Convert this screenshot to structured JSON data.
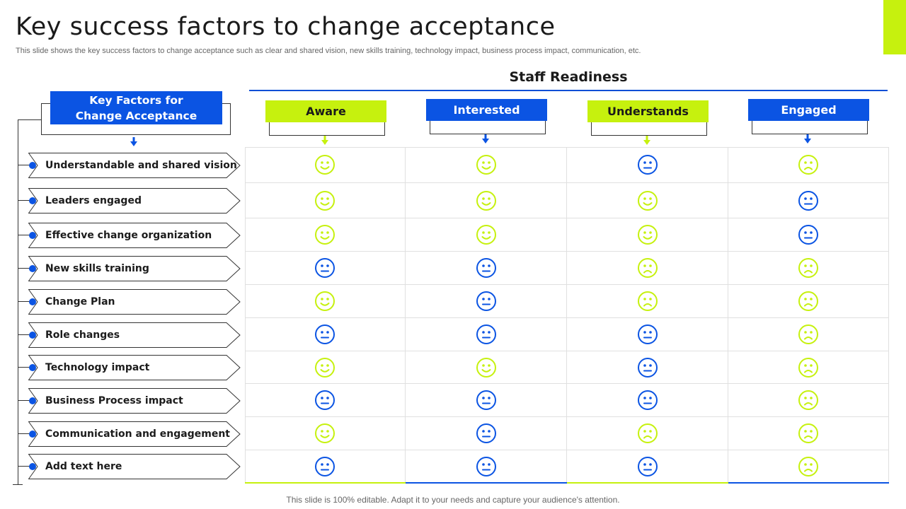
{
  "slide": {
    "title": "Key success factors to change acceptance",
    "subtitle": "This slide shows the key success factors to change acceptance such as clear and shared vision, new skills training, technology impact, business process impact, communication, etc.",
    "footer": "This slide is 100% editable. Adapt it to your needs and capture your audience's attention."
  },
  "colors": {
    "blue": "#0b54e3",
    "lime": "#c6f10e",
    "neutral_face": "#0b54e3",
    "happy_face": "#c6f10e",
    "sad_face": "#c6f10e"
  },
  "factors_header": {
    "line1": "Key Factors for",
    "line2": "Change Acceptance"
  },
  "staff_readiness": {
    "title": "Staff Readiness",
    "columns": [
      {
        "label": "Aware",
        "style": "lime"
      },
      {
        "label": "Interested",
        "style": "blue"
      },
      {
        "label": "Understands",
        "style": "lime"
      },
      {
        "label": "Engaged",
        "style": "blue"
      }
    ]
  },
  "factors": [
    {
      "label": "Understandable and shared vision",
      "faces": [
        "happy",
        "happy",
        "neutral",
        "sad"
      ]
    },
    {
      "label": "Leaders engaged",
      "faces": [
        "happy",
        "happy",
        "happy",
        "neutral"
      ]
    },
    {
      "label": "Effective change organization",
      "faces": [
        "happy",
        "happy",
        "happy",
        "neutral"
      ]
    },
    {
      "label": "New skills training",
      "faces": [
        "neutral",
        "neutral",
        "sad",
        "sad"
      ]
    },
    {
      "label": "Change Plan",
      "faces": [
        "happy",
        "neutral",
        "sad",
        "sad"
      ]
    },
    {
      "label": "Role changes",
      "faces": [
        "neutral",
        "neutral",
        "neutral",
        "sad"
      ]
    },
    {
      "label": "Technology impact",
      "faces": [
        "happy",
        "happy",
        "neutral",
        "sad"
      ]
    },
    {
      "label": "Business Process impact",
      "faces": [
        "neutral",
        "neutral",
        "neutral",
        "sad"
      ]
    },
    {
      "label": "Communication and engagement",
      "faces": [
        "happy",
        "neutral",
        "sad",
        "sad"
      ]
    },
    {
      "label": "Add text here",
      "faces": [
        "neutral",
        "neutral",
        "neutral",
        "sad"
      ]
    }
  ]
}
